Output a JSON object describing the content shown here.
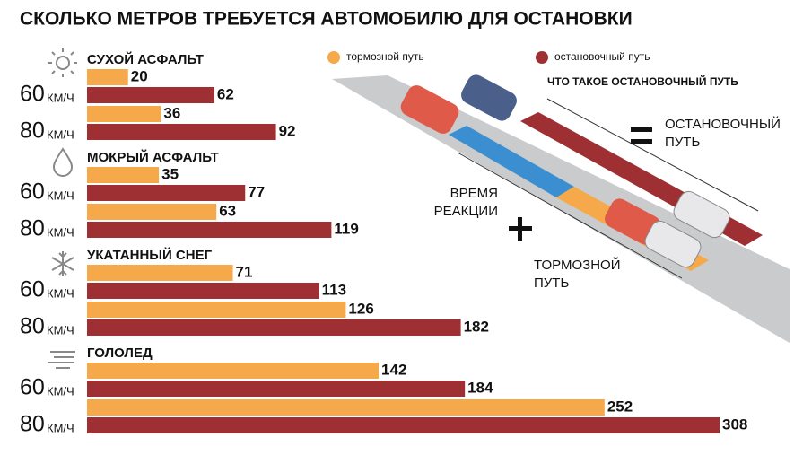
{
  "chart_data": {
    "type": "bar",
    "orientation": "horizontal",
    "title": "СКОЛЬКО МЕТРОВ ТРЕБУЕТСЯ АВТОМОБИЛЮ ДЛЯ ОСТАНОВКИ",
    "groups": [
      "СУХОЙ АСФАЛЬТ",
      "МОКРЫЙ АСФАЛЬТ",
      "УКАТАННЫЙ СНЕГ",
      "ГОЛОЛЕД"
    ],
    "categories": [
      "60",
      "80",
      "60",
      "80",
      "60",
      "80",
      "60",
      "80"
    ],
    "unit": "КМ/Ч",
    "series": [
      {
        "name": "тормозной путь",
        "color": "#f5a94a",
        "values": [
          20,
          36,
          35,
          63,
          71,
          126,
          142,
          252
        ]
      },
      {
        "name": "остановочный путь",
        "color": "#9e2f33",
        "values": [
          62,
          92,
          77,
          119,
          113,
          182,
          184,
          308
        ]
      }
    ],
    "diagram": {
      "title": "ЧТО ТАКОЕ ОСТАНОВОЧНЫЙ ПУТЬ",
      "stopping": [
        "ОСТАНОВОЧНЫЙ",
        "ПУТЬ"
      ],
      "reaction": [
        "ВРЕМЯ",
        "РЕАКЦИИ"
      ],
      "braking": [
        "ТОРМОЗНОЙ",
        "ПУТЬ"
      ]
    }
  }
}
